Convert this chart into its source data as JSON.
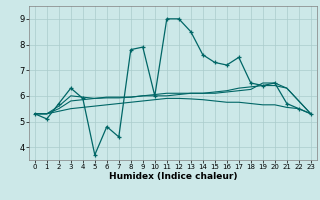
{
  "xlabel": "Humidex (Indice chaleur)",
  "bg_color": "#cce8e8",
  "grid_color": "#aacccc",
  "line_color": "#006666",
  "xlim": [
    -0.5,
    23.5
  ],
  "ylim": [
    3.5,
    9.5
  ],
  "xticks": [
    0,
    1,
    2,
    3,
    4,
    5,
    6,
    7,
    8,
    9,
    10,
    11,
    12,
    13,
    14,
    15,
    16,
    17,
    18,
    19,
    20,
    21,
    22,
    23
  ],
  "yticks": [
    4,
    5,
    6,
    7,
    8,
    9
  ],
  "lines": [
    {
      "x": [
        0,
        1,
        2,
        3,
        4,
        5,
        6,
        7,
        8,
        9,
        10,
        11,
        12,
        13,
        14,
        15,
        16,
        17,
        18,
        19,
        20,
        21,
        22,
        23
      ],
      "y": [
        5.3,
        5.1,
        5.7,
        6.3,
        5.9,
        3.7,
        4.8,
        4.4,
        7.8,
        7.9,
        6.0,
        9.0,
        9.0,
        8.5,
        7.6,
        7.3,
        7.2,
        7.5,
        6.5,
        6.4,
        6.5,
        5.7,
        5.5,
        5.3
      ],
      "marker": true
    },
    {
      "x": [
        0,
        1,
        2,
        3,
        4,
        5,
        6,
        7,
        8,
        9,
        10,
        11,
        12,
        13,
        14,
        15,
        16,
        17,
        18,
        19,
        20,
        21,
        22,
        23
      ],
      "y": [
        5.3,
        5.3,
        5.5,
        5.8,
        5.85,
        5.9,
        5.95,
        5.95,
        5.95,
        6.0,
        6.0,
        6.0,
        6.05,
        6.1,
        6.1,
        6.15,
        6.2,
        6.3,
        6.35,
        6.4,
        6.4,
        6.3,
        5.8,
        5.3
      ],
      "marker": false
    },
    {
      "x": [
        0,
        1,
        2,
        3,
        4,
        5,
        6,
        7,
        8,
        9,
        10,
        11,
        12,
        13,
        14,
        15,
        16,
        17,
        18,
        19,
        20,
        21,
        22,
        23
      ],
      "y": [
        5.3,
        5.3,
        5.6,
        6.0,
        5.95,
        5.9,
        5.92,
        5.92,
        5.95,
        6.0,
        6.05,
        6.1,
        6.1,
        6.1,
        6.1,
        6.1,
        6.15,
        6.2,
        6.25,
        6.5,
        6.5,
        6.3,
        5.8,
        5.3
      ],
      "marker": false
    },
    {
      "x": [
        0,
        1,
        2,
        3,
        4,
        5,
        6,
        7,
        8,
        9,
        10,
        11,
        12,
        13,
        14,
        15,
        16,
        17,
        18,
        19,
        20,
        21,
        22,
        23
      ],
      "y": [
        5.3,
        5.3,
        5.4,
        5.5,
        5.55,
        5.6,
        5.65,
        5.7,
        5.75,
        5.8,
        5.85,
        5.9,
        5.9,
        5.88,
        5.85,
        5.8,
        5.75,
        5.75,
        5.7,
        5.65,
        5.65,
        5.55,
        5.5,
        5.3
      ],
      "marker": false
    }
  ]
}
